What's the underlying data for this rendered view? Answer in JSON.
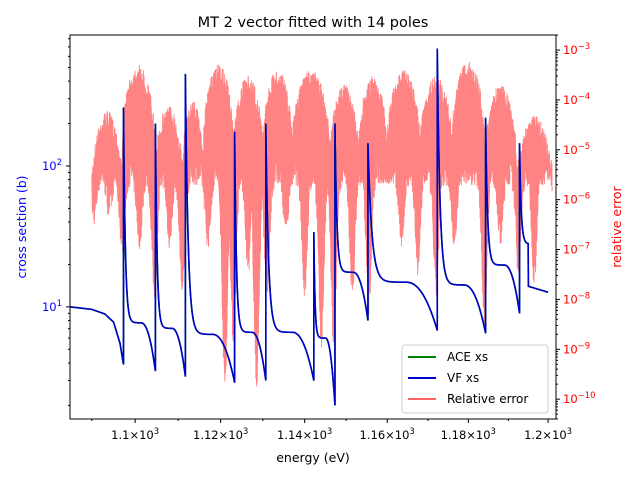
{
  "chart_data": {
    "type": "line",
    "title": "MT 2 vector fitted with 14 poles",
    "xlabel": "energy (eV)",
    "ylabel_left": "cross section (b)",
    "ylabel_right": "relative error",
    "x_scale": "log",
    "y_left_scale": "log",
    "y_right_scale": "log",
    "xlim": [
      1085,
      1202
    ],
    "ylim_left": [
      1.6,
      850
    ],
    "ylim_right": [
      4e-11,
      0.002
    ],
    "x_ticks": [
      {
        "value": 1100,
        "base": "1.1×10",
        "exp": "3"
      },
      {
        "value": 1120,
        "base": "1.12×10",
        "exp": "3"
      },
      {
        "value": 1140,
        "base": "1.14×10",
        "exp": "3"
      },
      {
        "value": 1160,
        "base": "1.16×10",
        "exp": "3"
      },
      {
        "value": 1180,
        "base": "1.18×10",
        "exp": "3"
      },
      {
        "value": 1200,
        "base": "1.2×10",
        "exp": "3"
      }
    ],
    "y_left_ticks": [
      {
        "value": 10,
        "base": "10",
        "exp": "1"
      },
      {
        "value": 100,
        "base": "10",
        "exp": "2"
      }
    ],
    "y_right_ticks": [
      {
        "value": 1e-10,
        "base": "10",
        "exp": "−10"
      },
      {
        "value": 1e-09,
        "base": "10",
        "exp": "−9"
      },
      {
        "value": 1e-08,
        "base": "10",
        "exp": "−8"
      },
      {
        "value": 1e-07,
        "base": "10",
        "exp": "−7"
      },
      {
        "value": 1e-06,
        "base": "10",
        "exp": "−6"
      },
      {
        "value": 1e-05,
        "base": "10",
        "exp": "−5"
      },
      {
        "value": 0.0001,
        "base": "10",
        "exp": "−4"
      },
      {
        "value": 0.001,
        "base": "10",
        "exp": "−3"
      }
    ],
    "legend_position": "lower-right",
    "grid": false,
    "series": [
      {
        "name": "ACE xs",
        "color": "#008000",
        "axis": "left",
        "baseline": [
          [
            1085,
            10.0
          ],
          [
            1090,
            9.6
          ],
          [
            1093,
            8.9
          ],
          [
            1095,
            7.8
          ],
          [
            1096.5,
            5.5
          ]
        ],
        "resonances": [
          {
            "e": 1097.3,
            "peak": 260,
            "dip": 3.9
          },
          {
            "e": 1104.7,
            "peak": 200,
            "dip": 3.5
          },
          {
            "e": 1111.7,
            "peak": 450,
            "dip": 3.2
          },
          {
            "e": 1123.3,
            "peak": 175,
            "dip": 2.9
          },
          {
            "e": 1130.7,
            "peak": 200,
            "dip": 3.0
          },
          {
            "e": 1142.2,
            "peak": 34,
            "dip": 3.0
          },
          {
            "e": 1147.3,
            "peak": 200,
            "dip": 2.0
          },
          {
            "e": 1155.3,
            "peak": 145,
            "dip": 8.0
          },
          {
            "e": 1172.3,
            "peak": 680,
            "dip": 6.8
          },
          {
            "e": 1184.3,
            "peak": 220,
            "dip": 6.5
          },
          {
            "e": 1192.8,
            "peak": 145,
            "dip": 9.0
          }
        ],
        "tail": [
          [
            1195,
            14.0
          ],
          [
            1200,
            12.7
          ]
        ]
      },
      {
        "name": "VF xs",
        "color": "#0000cc",
        "axis": "left",
        "same_as": "ACE xs"
      },
      {
        "name": "Relative error",
        "color": "#ff6464",
        "axis": "right",
        "range": [
          1090,
          1201
        ],
        "upper_envelope_arches": [
          {
            "from": 1090,
            "to": 1097,
            "max": 6e-05
          },
          {
            "from": 1097,
            "to": 1104.5,
            "max": 0.0005
          },
          {
            "from": 1104.5,
            "to": 1111,
            "max": 8e-05
          },
          {
            "from": 1111,
            "to": 1116,
            "max": 0.0001
          },
          {
            "from": 1116,
            "to": 1123,
            "max": 0.0005
          },
          {
            "from": 1123,
            "to": 1130,
            "max": 0.0003
          },
          {
            "from": 1130,
            "to": 1137,
            "max": 0.0004
          },
          {
            "from": 1137,
            "to": 1146,
            "max": 0.0004
          },
          {
            "from": 1146,
            "to": 1153,
            "max": 0.0002
          },
          {
            "from": 1153,
            "to": 1160,
            "max": 0.0003
          },
          {
            "from": 1160,
            "to": 1168,
            "max": 0.0004
          },
          {
            "from": 1168,
            "to": 1176,
            "max": 0.0003
          },
          {
            "from": 1176,
            "to": 1184,
            "max": 0.0006
          },
          {
            "from": 1184,
            "to": 1192,
            "max": 0.0002
          },
          {
            "from": 1192,
            "to": 1201,
            "max": 5e-05
          }
        ],
        "lower_envelope_cusps": [
          {
            "e": 1090.5,
            "min": 3e-07
          },
          {
            "e": 1094,
            "min": 4e-07
          },
          {
            "e": 1097,
            "min": 8e-08
          },
          {
            "e": 1101,
            "min": 1e-07
          },
          {
            "e": 1104.5,
            "min": 1e-08
          },
          {
            "e": 1108,
            "min": 1e-07
          },
          {
            "e": 1111,
            "min": 1e-08
          },
          {
            "e": 1117,
            "min": 1e-07
          },
          {
            "e": 1121,
            "min": 1.5e-10
          },
          {
            "e": 1123,
            "min": 1.2e-09
          },
          {
            "e": 1126.5,
            "min": 3e-08
          },
          {
            "e": 1128.5,
            "min": 1.5e-10
          },
          {
            "e": 1131,
            "min": 1e-08
          },
          {
            "e": 1135.5,
            "min": 2e-07
          },
          {
            "e": 1140,
            "min": 1e-08
          },
          {
            "e": 1144,
            "min": 1e-09
          },
          {
            "e": 1147,
            "min": 8e-10
          },
          {
            "e": 1151.5,
            "min": 1e-08
          },
          {
            "e": 1155.5,
            "min": 5e-09
          },
          {
            "e": 1163.5,
            "min": 1e-07
          },
          {
            "e": 1167.5,
            "min": 3e-08
          },
          {
            "e": 1172,
            "min": 1e-08
          },
          {
            "e": 1176.5,
            "min": 1e-07
          },
          {
            "e": 1184,
            "min": 3e-09
          },
          {
            "e": 1188,
            "min": 1e-07
          },
          {
            "e": 1192.5,
            "min": 3e-08
          },
          {
            "e": 1196.5,
            "min": 2e-08
          },
          {
            "e": 1200.5,
            "min": 3e-06
          }
        ]
      }
    ]
  },
  "colors": {
    "left_axis": "#0000ff",
    "right_axis": "#ff0000",
    "frame": "#000000"
  }
}
